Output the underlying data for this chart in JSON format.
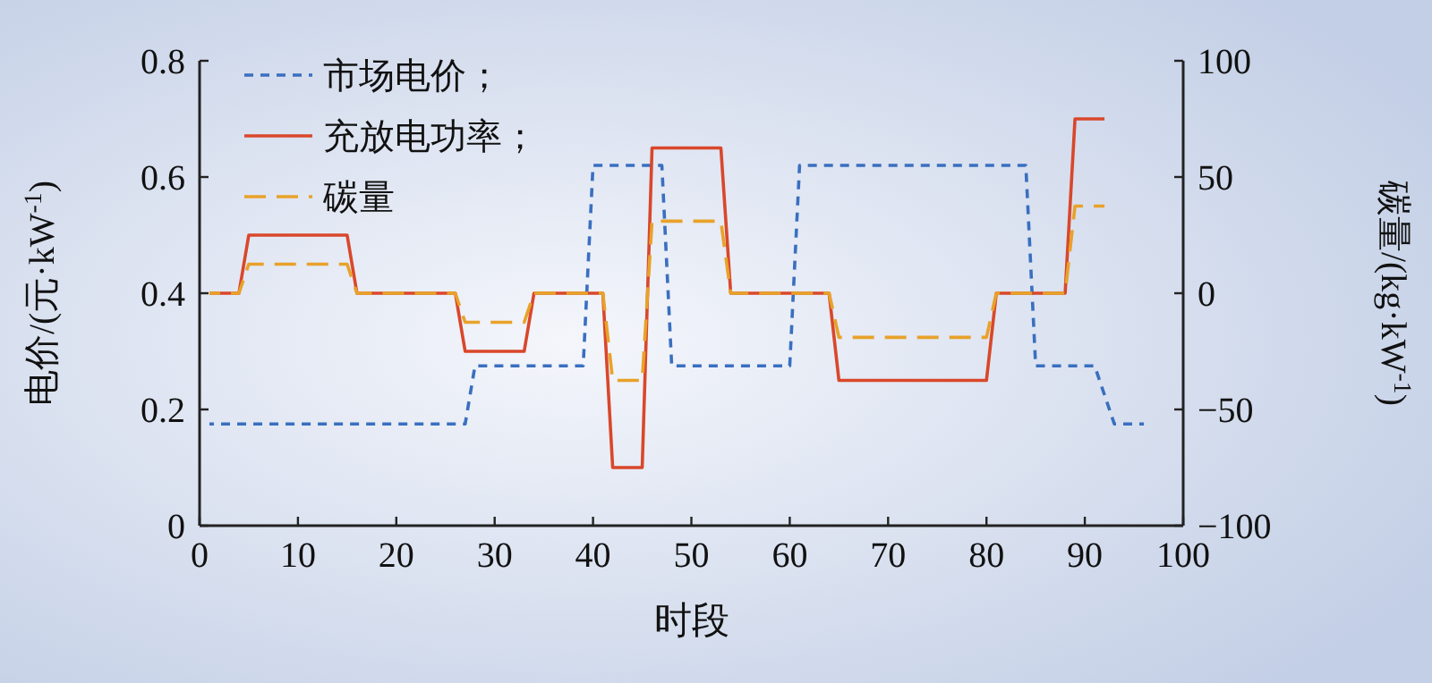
{
  "chart_data": {
    "type": "line",
    "xlabel": "时段",
    "ylabel": "电价/(元·kW$^{-1}$)",
    "y2label": "碳量/(kg·kW$^{-1}$)",
    "xlim": [
      0,
      100
    ],
    "xticks": [
      0,
      10,
      20,
      30,
      40,
      50,
      60,
      70,
      80,
      90,
      100
    ],
    "ylim": [
      0,
      0.8
    ],
    "yticks": [
      0,
      0.2,
      0.4,
      0.6,
      0.8
    ],
    "y2lim": [
      -100,
      100
    ],
    "y2ticks": [
      {
        "value": -100,
        "label": "−100"
      },
      {
        "value": -50,
        "label": "−50"
      },
      0,
      50,
      100
    ],
    "grid": false,
    "legend": "top left",
    "marker": "none",
    "series": [
      {
        "name": "市场电价；",
        "color": "#3a6fc0",
        "line_style": "dashed",
        "x": [
          1,
          27,
          28,
          39,
          40,
          47,
          48,
          60,
          61,
          84,
          85,
          91,
          93,
          96
        ],
        "values": [
          0.175,
          0.175,
          0.275,
          0.275,
          0.62,
          0.62,
          0.275,
          0.275,
          0.62,
          0.62,
          0.275,
          0.275,
          0.175,
          0.175
        ]
      },
      {
        "name": "充放电功率；",
        "color": "#d9472b",
        "line_style": "solid",
        "axis": "y2",
        "x": [
          1,
          4,
          5,
          15,
          16,
          26,
          27,
          33,
          34,
          41,
          42,
          45,
          46,
          53,
          54,
          64,
          65,
          80,
          81,
          88,
          89,
          92
        ],
        "values": [
          0,
          0,
          25,
          25,
          0,
          0,
          -25,
          -25,
          0,
          0,
          -75,
          -75,
          62.5,
          62.5,
          0,
          0,
          -37.5,
          -37.5,
          0,
          0,
          75,
          75
        ]
      },
      {
        "name": "碳量",
        "color": "#e8a22a",
        "line_style": "longdash",
        "axis": "y2",
        "x": [
          1,
          4,
          5,
          15,
          16,
          26,
          27,
          33,
          34,
          41,
          42,
          45,
          46,
          53,
          54,
          64,
          65,
          80,
          81,
          88,
          89,
          92
        ],
        "values": [
          0,
          0,
          12.5,
          12.5,
          0,
          0,
          -12.5,
          -12.5,
          0,
          0,
          -37.5,
          -37.5,
          31,
          31,
          0,
          0,
          -19,
          -19,
          0,
          0,
          37.5,
          37.5
        ]
      }
    ]
  }
}
